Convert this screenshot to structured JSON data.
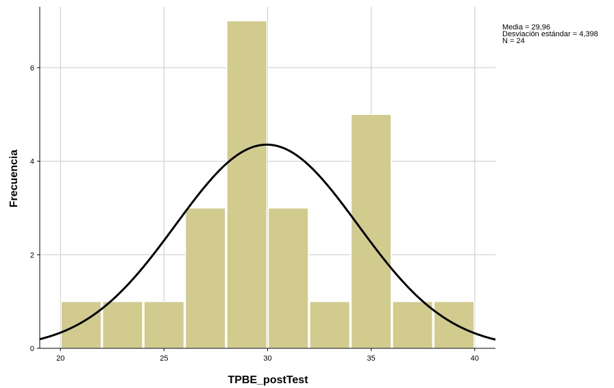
{
  "chart_data": {
    "type": "bar",
    "subtype": "histogram-with-normal-curve",
    "xlabel": "TPBE_postTest",
    "ylabel": "Frecuencia",
    "xlim": [
      19,
      41
    ],
    "ylim": [
      0,
      7.3
    ],
    "x_ticks": [
      20,
      25,
      30,
      35,
      40
    ],
    "y_ticks": [
      0,
      2,
      4,
      6
    ],
    "grid": true,
    "bin_edges": [
      20,
      22,
      24,
      26,
      28,
      30,
      32,
      34,
      36,
      38,
      40
    ],
    "values": [
      1,
      1,
      1,
      3,
      7,
      3,
      1,
      5,
      1,
      1
    ],
    "bar_color": "#d1cb8e",
    "curve_color": "#000000",
    "normal_curve": {
      "mean": 29.96,
      "sd": 4.398,
      "n": 24,
      "bin_width": 2
    },
    "stats": {
      "mean_label": "Media = 29,96",
      "sd_label": "Desviación estándar = 4,398",
      "n_label": "N = 24"
    }
  }
}
